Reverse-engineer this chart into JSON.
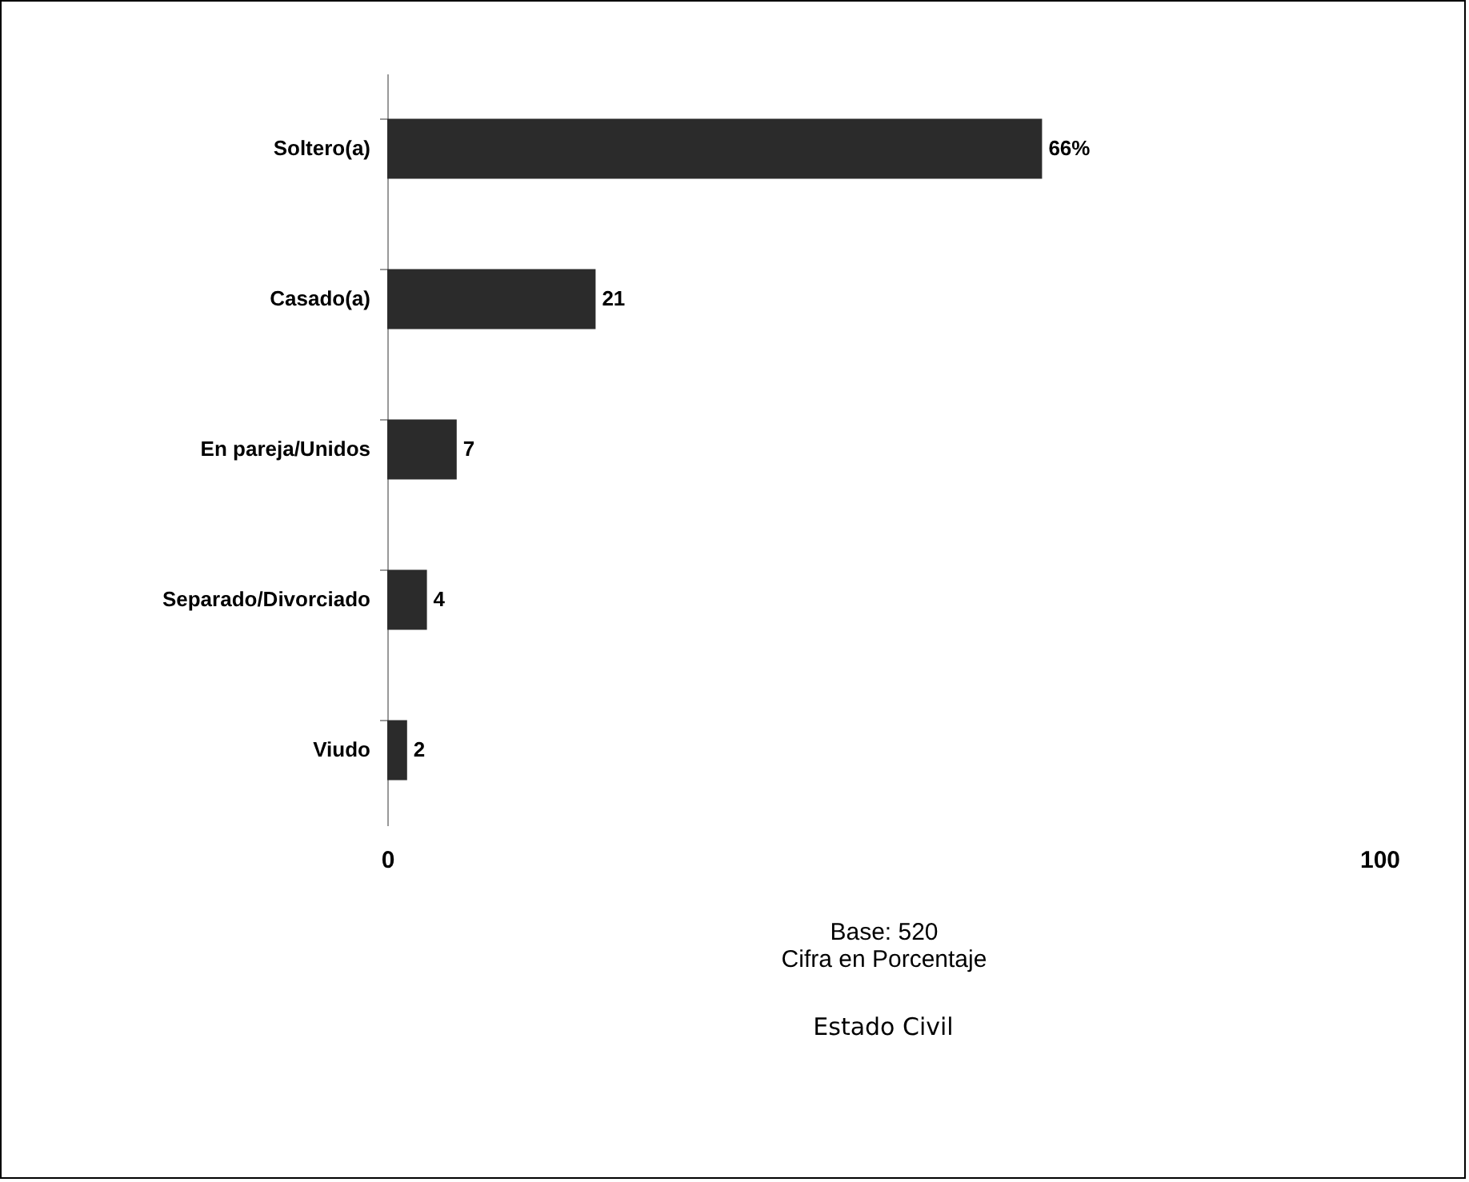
{
  "chart_data": {
    "type": "bar",
    "orientation": "horizontal",
    "title": "Estado Civil",
    "xlabel": "Base: 520\nCifra en Porcentaje",
    "categories": [
      "Soltero(a)",
      "Casado(a)",
      "En pareja/Unidos",
      "Separado/Divorciado",
      "Viudo"
    ],
    "values": [
      66,
      21,
      7,
      4,
      2
    ],
    "value_labels": [
      "66%",
      "21",
      "7",
      "4",
      "2"
    ],
    "color": "#2b2b2b",
    "xlim": [
      0,
      100
    ],
    "xticks": [
      0,
      100
    ]
  }
}
